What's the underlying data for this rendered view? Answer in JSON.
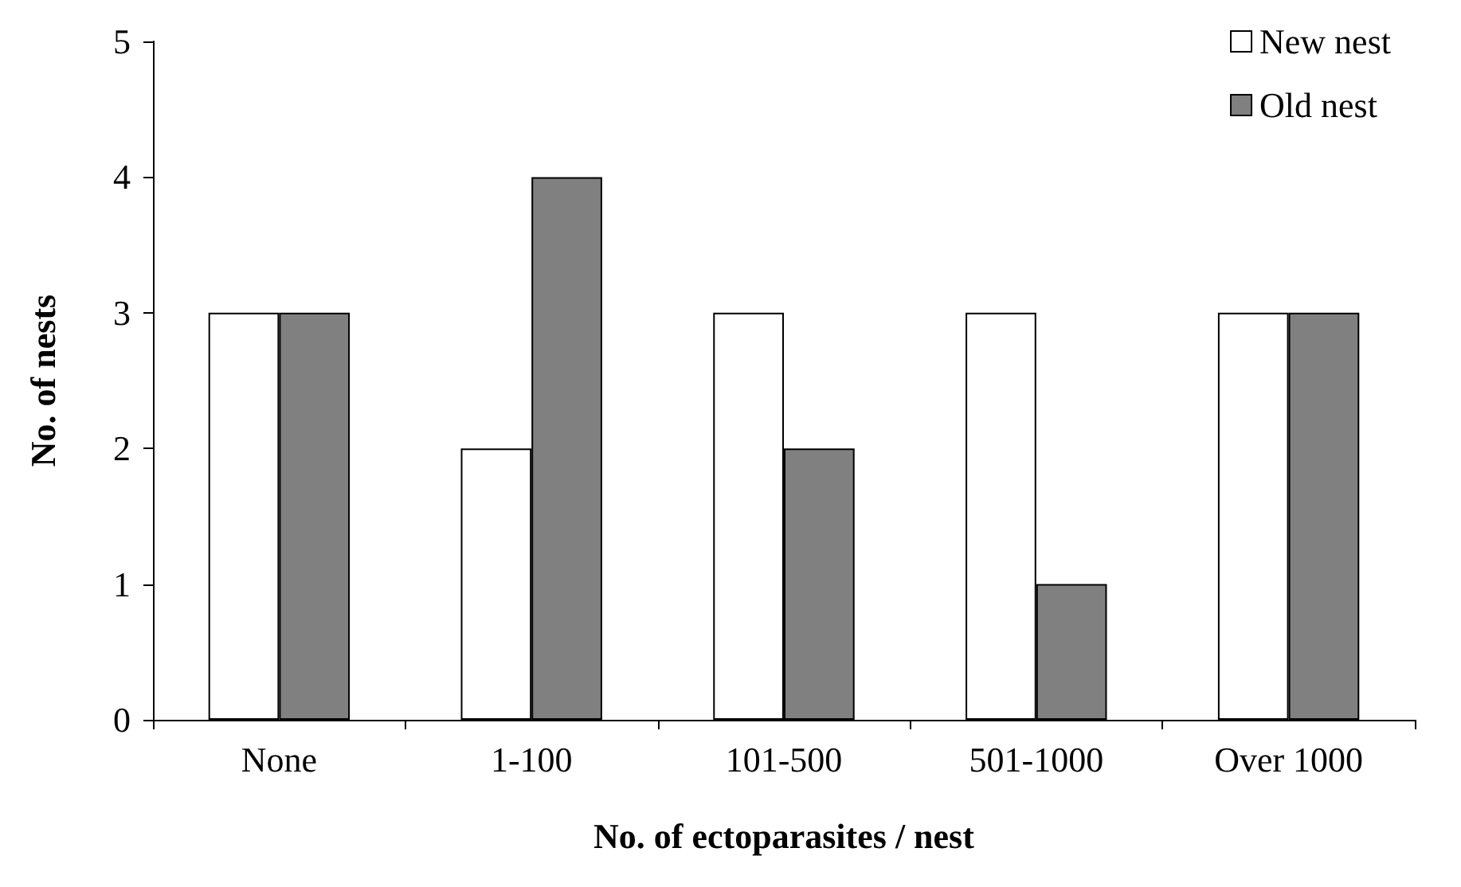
{
  "chart_data": {
    "type": "bar",
    "xlabel": "No. of ectoparasites / nest",
    "ylabel": "No. of nests",
    "categories": [
      "None",
      "1-100",
      "101-500",
      "501-1000",
      "Over 1000"
    ],
    "series": [
      {
        "name": "New nest",
        "color": "#ffffff",
        "values": [
          3,
          2,
          3,
          3,
          3
        ]
      },
      {
        "name": "Old nest",
        "color": "#808080",
        "values": [
          3,
          4,
          2,
          1,
          3
        ]
      }
    ],
    "ylim": [
      0,
      5
    ],
    "yticks": [
      0,
      1,
      2,
      3,
      4,
      5
    ],
    "grid": false,
    "legend": "top right"
  }
}
